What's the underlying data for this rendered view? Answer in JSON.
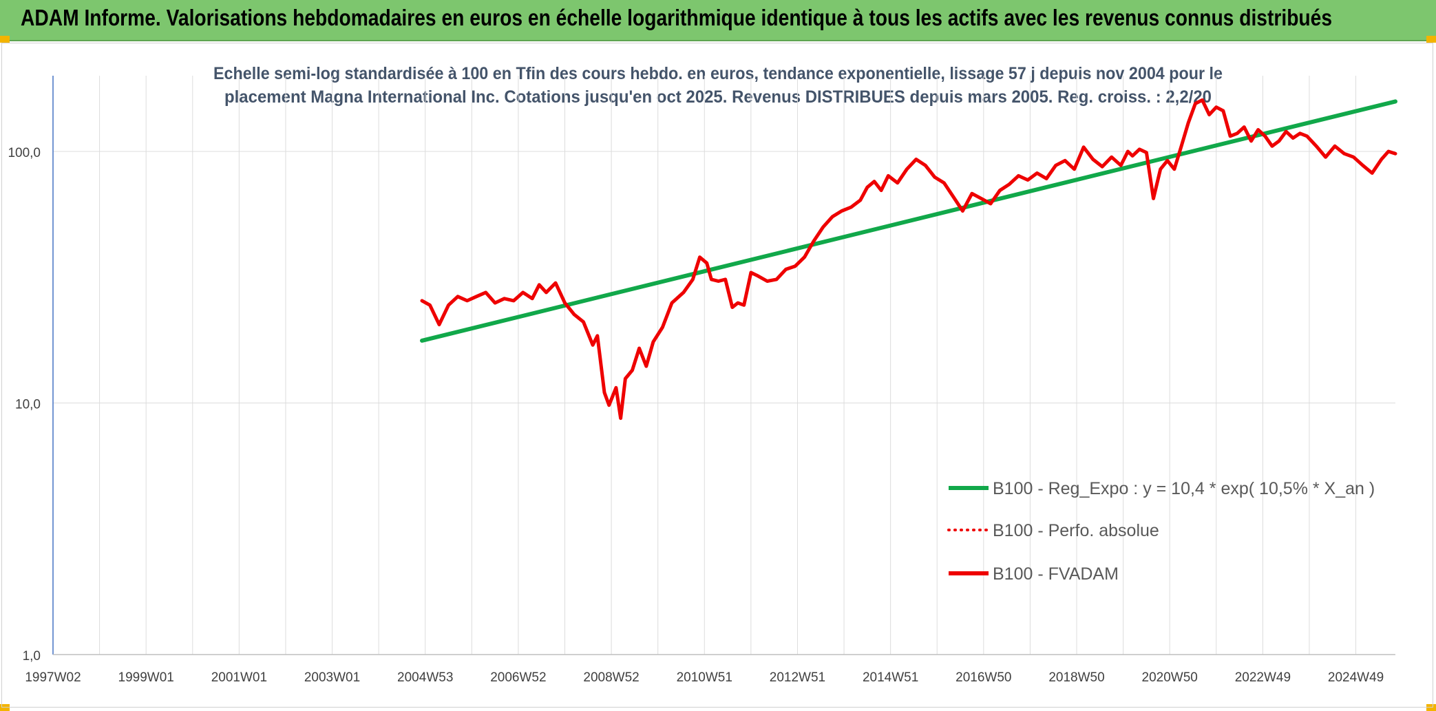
{
  "header": {
    "title": "ADAM Informe. Valorisations hebdomadaires en euros en échelle logarithmique identique à tous les actifs avec les revenus connus distribués"
  },
  "colors": {
    "banner": "#7dc66e",
    "corner": "#f3b400",
    "trend": "#11a84a",
    "fvadam": "#ee0000",
    "perfo": "#ee0000",
    "grid": "#dcdcdc",
    "title": "#44546a"
  },
  "chart_data": {
    "type": "line",
    "title_lines": [
      "Echelle semi-log standardisée à 100 en Tfin des cours hebdo. en euros, tendance exponentielle, lissage 57 j depuis nov 2004 pour le",
      "placement Magna International Inc. Cotations jusqu'en oct 2025. Revenus DISTRIBUES depuis mars 2005. Reg. croiss. : 2,2/20"
    ],
    "y_scale": "log",
    "ylim": [
      1,
      200
    ],
    "y_ticks": [
      {
        "value": 1,
        "label": "1,0"
      },
      {
        "value": 10,
        "label": "10,0"
      },
      {
        "value": 100,
        "label": "100,0"
      }
    ],
    "xlim": [
      1997.0,
      2025.85
    ],
    "x_ticks": [
      {
        "x": 1997.0,
        "label": "1997W02"
      },
      {
        "x": 1999.0,
        "label": "1999W01"
      },
      {
        "x": 2001.0,
        "label": "2001W01"
      },
      {
        "x": 2003.0,
        "label": "2003W01"
      },
      {
        "x": 2005.0,
        "label": "2004W53"
      },
      {
        "x": 2007.0,
        "label": "2006W52"
      },
      {
        "x": 2009.0,
        "label": "2008W52"
      },
      {
        "x": 2011.0,
        "label": "2010W51"
      },
      {
        "x": 2013.0,
        "label": "2012W51"
      },
      {
        "x": 2015.0,
        "label": "2014W51"
      },
      {
        "x": 2017.0,
        "label": "2016W50"
      },
      {
        "x": 2019.0,
        "label": "2018W50"
      },
      {
        "x": 2021.0,
        "label": "2020W50"
      },
      {
        "x": 2023.0,
        "label": "2022W49"
      },
      {
        "x": 2025.0,
        "label": "2024W49"
      }
    ],
    "grid": true,
    "legend_position": "bottom-right",
    "series": [
      {
        "name": "B100 - Reg_Expo : y = 10,4 * exp( 10,5% * X_an )",
        "style": "solid",
        "x": [
          2004.93,
          2025.85
        ],
        "y": [
          17.7,
          158
        ]
      },
      {
        "name": "B100 - Perfo. absolue",
        "style": "dotted",
        "x": [],
        "y": []
      },
      {
        "name": "B100 - FVADAM",
        "style": "solid",
        "x": [
          2004.93,
          2005.1,
          2005.3,
          2005.5,
          2005.7,
          2005.9,
          2006.1,
          2006.3,
          2006.5,
          2006.7,
          2006.9,
          2007.1,
          2007.3,
          2007.45,
          2007.6,
          2007.8,
          2008.0,
          2008.2,
          2008.4,
          2008.6,
          2008.7,
          2008.85,
          2008.95,
          2009.1,
          2009.2,
          2009.3,
          2009.45,
          2009.6,
          2009.75,
          2009.9,
          2010.1,
          2010.3,
          2010.55,
          2010.75,
          2010.9,
          2011.05,
          2011.15,
          2011.3,
          2011.45,
          2011.6,
          2011.72,
          2011.85,
          2012.0,
          2012.15,
          2012.35,
          2012.55,
          2012.75,
          2012.95,
          2013.15,
          2013.35,
          2013.55,
          2013.75,
          2013.95,
          2014.15,
          2014.35,
          2014.5,
          2014.65,
          2014.8,
          2014.95,
          2015.15,
          2015.35,
          2015.55,
          2015.75,
          2015.95,
          2016.15,
          2016.35,
          2016.55,
          2016.75,
          2016.95,
          2017.15,
          2017.35,
          2017.55,
          2017.75,
          2017.95,
          2018.15,
          2018.35,
          2018.55,
          2018.75,
          2018.95,
          2019.15,
          2019.35,
          2019.55,
          2019.75,
          2019.95,
          2020.1,
          2020.2,
          2020.35,
          2020.5,
          2020.65,
          2020.8,
          2020.95,
          2021.1,
          2021.25,
          2021.4,
          2021.55,
          2021.7,
          2021.85,
          2022.0,
          2022.15,
          2022.3,
          2022.45,
          2022.6,
          2022.75,
          2022.9,
          2023.05,
          2023.2,
          2023.35,
          2023.5,
          2023.65,
          2023.8,
          2023.95,
          2024.15,
          2024.35,
          2024.55,
          2024.75,
          2024.95,
          2025.15,
          2025.35,
          2025.55,
          2025.7,
          2025.85
        ],
        "y": [
          25.5,
          24.5,
          20.5,
          24.5,
          26.5,
          25.5,
          26.5,
          27.5,
          25.0,
          26.0,
          25.5,
          27.5,
          26.0,
          29.5,
          27.5,
          30.0,
          25.0,
          22.5,
          21.0,
          17.0,
          18.5,
          11.0,
          9.8,
          11.5,
          8.7,
          12.5,
          13.5,
          16.5,
          14.0,
          17.5,
          20.0,
          25.0,
          27.5,
          31.0,
          38.0,
          36.0,
          31.0,
          30.5,
          31.0,
          24.0,
          25.0,
          24.5,
          33.0,
          32.0,
          30.5,
          31.0,
          34.0,
          35.0,
          38.0,
          44.0,
          50.0,
          55.0,
          58.0,
          60.0,
          64.0,
          72.0,
          76.0,
          70.0,
          80.0,
          75.0,
          85.0,
          93.0,
          88.0,
          79.0,
          75.0,
          66.0,
          58.0,
          68.0,
          65.0,
          62.0,
          70.0,
          74.0,
          80.0,
          77.0,
          82.0,
          78.0,
          88.0,
          92.0,
          85.0,
          104.0,
          93.0,
          87.0,
          95.0,
          88.0,
          100.0,
          96.0,
          102.0,
          99.0,
          65.0,
          85.0,
          92.0,
          85.0,
          105.0,
          130.0,
          155.0,
          160.0,
          140.0,
          150.0,
          145.0,
          115.0,
          118.0,
          125.0,
          110.0,
          122.0,
          115.0,
          105.0,
          110.0,
          120.0,
          113.0,
          118.0,
          115.0,
          105.0,
          95.0,
          105.0,
          98.0,
          95.0,
          88.0,
          82.0,
          93.0,
          100.0,
          98.0
        ]
      }
    ]
  }
}
